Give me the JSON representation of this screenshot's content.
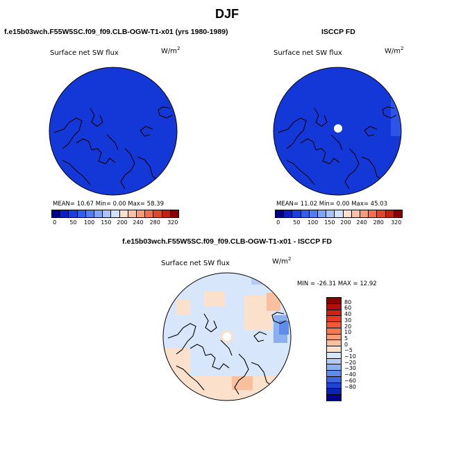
{
  "season": "DJF",
  "top_left": {
    "case_title": "f.e15b03wch.F55W5SC.f09_f09.CLB-OGW-T1-x01 (yrs 1980-1989)",
    "field": "Surface net SW flux",
    "units": "W/m",
    "units_exp": "2",
    "stats": "MEAN=   10.67   Min=    0.00   Max=   58.39"
  },
  "top_right": {
    "case_title": "ISCCP FD",
    "field": "Surface net SW flux",
    "units": "W/m",
    "units_exp": "2",
    "stats": "MEAN=   11.02   Min=    0.00   Max=   45.03"
  },
  "top_colorbar": {
    "colors": [
      "#00008b",
      "#0a1fc8",
      "#1a3fe0",
      "#2f5ef0",
      "#4f7ef4",
      "#7fa4f6",
      "#a9c4f8",
      "#d2e2fb",
      "#fbe0d0",
      "#f8c0a4",
      "#f49c78",
      "#ee7050",
      "#e0462a",
      "#c4200e",
      "#8b0000"
    ],
    "labels": [
      "0",
      "50",
      "100",
      "150",
      "200",
      "240",
      "280",
      "320"
    ]
  },
  "diff": {
    "case_title": "f.e15b03wch.F55W5SC.f09_f09.CLB-OGW-T1-x01 - ISCCP FD",
    "field": "Surface net SW flux",
    "units": "W/m",
    "units_exp": "2",
    "minmax": "MIN = -26.31  MAX =  12.92"
  },
  "diff_colorbar": {
    "colors": [
      "#8b0000",
      "#b00e08",
      "#d22212",
      "#e63a20",
      "#ee5a36",
      "#f27a52",
      "#f69c76",
      "#f9c0a0",
      "#fbe0cc",
      "#d6e6fb",
      "#b2ccf6",
      "#8ab0f0",
      "#5f8cea",
      "#3a66e2",
      "#1e44d4",
      "#0a24b8",
      "#00008b"
    ],
    "labels": [
      "80",
      "60",
      "40",
      "30",
      "20",
      "10",
      "5",
      "0",
      "−5",
      "−10",
      "−20",
      "−30",
      "−40",
      "−60",
      "−80"
    ]
  }
}
